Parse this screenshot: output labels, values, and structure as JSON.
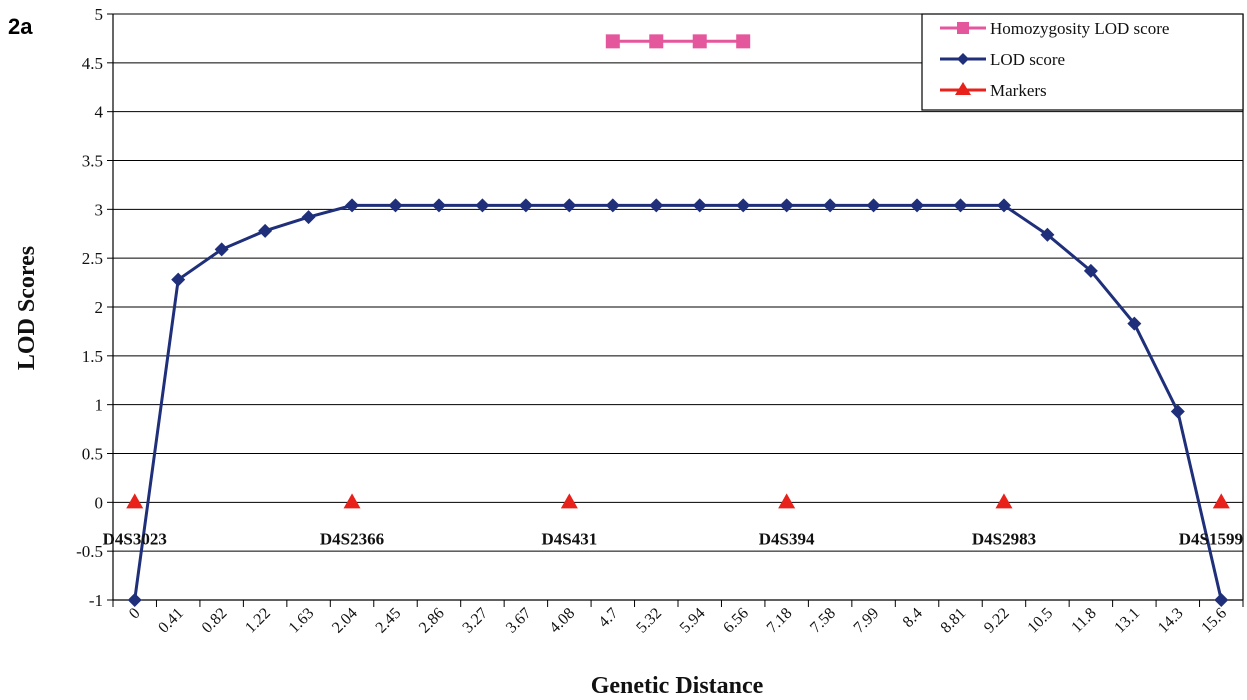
{
  "panel_label": "2a",
  "colors": {
    "lod": "#1f2f7a",
    "homozygosity": "#e4579c",
    "markers": "#e8221b",
    "grid": "#000000"
  },
  "chart_data": {
    "type": "line",
    "xlabel": "Genetic Distance",
    "ylabel": "LOD Scores",
    "ylim": [
      -1,
      5
    ],
    "ytick_step": 0.5,
    "yticks": [
      "-1",
      "-0.5",
      "0",
      "0.5",
      "1",
      "1.5",
      "2",
      "2.5",
      "3",
      "3.5",
      "4",
      "4.5",
      "5"
    ],
    "grid": "horizontal",
    "legend_position": "top-right",
    "categories": [
      "0",
      "0.41",
      "0.82",
      "1.22",
      "1.63",
      "2.04",
      "2.45",
      "2.86",
      "3.27",
      "3.67",
      "4.08",
      "4.7",
      "5.32",
      "5.94",
      "6.56",
      "7.18",
      "7.58",
      "7.99",
      "8.4",
      "8.81",
      "9.22",
      "10.5",
      "11.8",
      "13.1",
      "14.3",
      "15.6"
    ],
    "series": [
      {
        "name": "Homozygosity LOD score",
        "marker": "square",
        "points": [
          [
            11.5,
            4.72
          ],
          [
            12.5,
            4.72
          ],
          [
            13.5,
            4.72
          ],
          [
            14.5,
            4.72
          ]
        ]
      },
      {
        "name": "LOD score",
        "marker": "diamond",
        "points": [
          [
            0.5,
            -1
          ],
          [
            1.5,
            2.28
          ],
          [
            2.5,
            2.59
          ],
          [
            3.5,
            2.78
          ],
          [
            4.5,
            2.92
          ],
          [
            5.5,
            3.04
          ],
          [
            6.5,
            3.04
          ],
          [
            7.5,
            3.04
          ],
          [
            8.5,
            3.04
          ],
          [
            9.5,
            3.04
          ],
          [
            10.5,
            3.04
          ],
          [
            11.5,
            3.04
          ],
          [
            12.5,
            3.04
          ],
          [
            13.5,
            3.04
          ],
          [
            14.5,
            3.04
          ],
          [
            15.5,
            3.04
          ],
          [
            16.5,
            3.04
          ],
          [
            17.5,
            3.04
          ],
          [
            18.5,
            3.04
          ],
          [
            19.5,
            3.04
          ],
          [
            20.5,
            3.04
          ],
          [
            21.5,
            2.74
          ],
          [
            22.5,
            2.37
          ],
          [
            23.5,
            1.83
          ],
          [
            24.5,
            0.93
          ],
          [
            25.5,
            -1
          ]
        ]
      },
      {
        "name": "Markers",
        "marker": "triangle",
        "points": [
          [
            0.5,
            0
          ],
          [
            5.5,
            0
          ],
          [
            10.5,
            0
          ],
          [
            15.5,
            0
          ],
          [
            20.5,
            0
          ],
          [
            25.5,
            0
          ]
        ],
        "labels": [
          "D4S3023",
          "D4S2366",
          "D4S431",
          "D4S394",
          "D4S2983",
          "D4S1599"
        ]
      }
    ]
  }
}
